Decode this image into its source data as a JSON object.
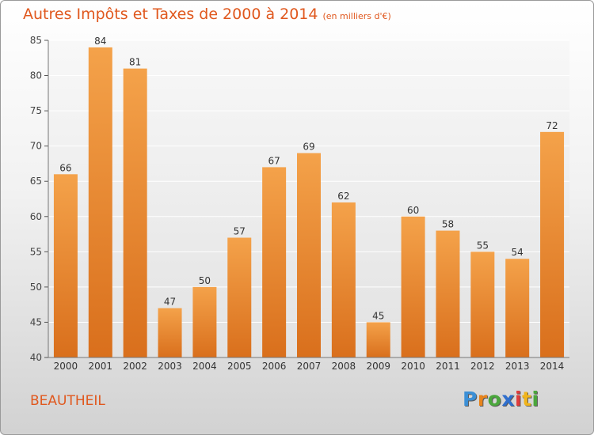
{
  "title": "Autres Impôts et Taxes de 2000 à 2014",
  "subtitle": "(en milliers d'€)",
  "town": "BEAUTHEIL",
  "brand": {
    "letters": [
      "P",
      "r",
      "o",
      "x",
      "i",
      "t",
      "i"
    ],
    "colors": [
      "#3b8fd6",
      "#e8841c",
      "#4aa73c",
      "#2f6fce",
      "#e03c3c",
      "#f0b41c",
      "#4aa73c"
    ]
  },
  "colors": {
    "accent": "#e0581e",
    "bar_top": "#f4a24a",
    "bar_bottom": "#d96f1c"
  },
  "chart_data": {
    "type": "bar",
    "categories": [
      "2000",
      "2001",
      "2002",
      "2003",
      "2004",
      "2005",
      "2006",
      "2007",
      "2008",
      "2009",
      "2010",
      "2011",
      "2012",
      "2013",
      "2014"
    ],
    "values": [
      66,
      84,
      81,
      47,
      50,
      57,
      67,
      69,
      62,
      45,
      60,
      58,
      55,
      54,
      72
    ],
    "ylim": [
      40,
      85
    ],
    "yticks": [
      40,
      45,
      50,
      55,
      60,
      65,
      70,
      75,
      80,
      85
    ],
    "grid": true,
    "data_labels": true
  }
}
